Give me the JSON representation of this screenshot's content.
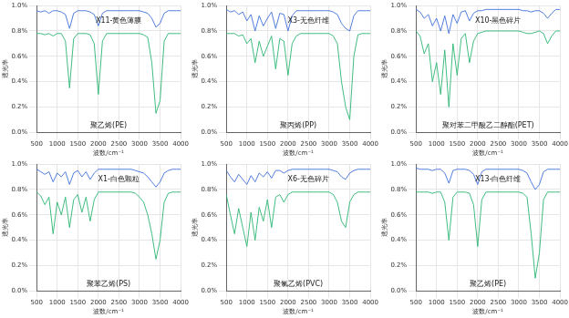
{
  "chart_data": [
    {
      "type": "line",
      "x_label": "波数/cm⁻¹",
      "y_label": "透光率",
      "xlim": [
        500,
        4000
      ],
      "xticks": [
        500,
        1000,
        1500,
        2000,
        2500,
        3000,
        3500,
        4000
      ],
      "ylim": [
        0,
        1.0
      ],
      "yticks": [
        {
          "value": 0,
          "label": "0.0%"
        },
        {
          "value": 0.2,
          "label": "0.2%"
        },
        {
          "value": 0.4,
          "label": "0.4%"
        },
        {
          "value": 0.6,
          "label": "0.6%"
        },
        {
          "value": 0.8,
          "label": "0.8%"
        },
        {
          "value": 1.0,
          "label": "1.0%"
        }
      ],
      "grid": true,
      "x": [
        500,
        600,
        700,
        800,
        900,
        1000,
        1100,
        1200,
        1300,
        1400,
        1500,
        1600,
        1700,
        1800,
        1900,
        2000,
        2100,
        2200,
        2300,
        2400,
        2500,
        2600,
        2700,
        2800,
        2900,
        3000,
        3100,
        3200,
        3300,
        3400,
        3500,
        3600,
        3700,
        3800,
        3900,
        4000
      ],
      "series": [
        {
          "name": "X11-黄色薄膜",
          "color": "#3f6fd9",
          "values": [
            0.96,
            0.95,
            0.96,
            0.94,
            0.96,
            0.96,
            0.95,
            0.93,
            0.82,
            0.94,
            0.96,
            0.96,
            0.96,
            0.95,
            0.93,
            0.84,
            0.94,
            0.96,
            0.96,
            0.96,
            0.96,
            0.96,
            0.96,
            0.96,
            0.96,
            0.96,
            0.95,
            0.94,
            0.9,
            0.83,
            0.86,
            0.94,
            0.96,
            0.96,
            0.96,
            0.96
          ]
        },
        {
          "name": "聚乙烯(PE)",
          "color": "#2bb673",
          "values": [
            0.78,
            0.78,
            0.77,
            0.78,
            0.76,
            0.78,
            0.78,
            0.72,
            0.35,
            0.74,
            0.78,
            0.78,
            0.78,
            0.77,
            0.7,
            0.3,
            0.72,
            0.78,
            0.78,
            0.78,
            0.78,
            0.78,
            0.78,
            0.78,
            0.78,
            0.78,
            0.77,
            0.75,
            0.55,
            0.15,
            0.25,
            0.72,
            0.78,
            0.78,
            0.78,
            0.78
          ]
        }
      ]
    },
    {
      "type": "line",
      "x_label": "波数/cm⁻¹",
      "y_label": "透光率",
      "xlim": [
        500,
        4000
      ],
      "xticks": [
        500,
        1000,
        1500,
        2000,
        2500,
        3000,
        3500,
        4000
      ],
      "ylim": [
        0,
        1.0
      ],
      "yticks": [
        {
          "value": 0,
          "label": "0.0%"
        },
        {
          "value": 0.2,
          "label": "0.2%"
        },
        {
          "value": 0.4,
          "label": "0.4%"
        },
        {
          "value": 0.6,
          "label": "0.6%"
        },
        {
          "value": 0.8,
          "label": "0.8%"
        },
        {
          "value": 1.0,
          "label": "1.0%"
        }
      ],
      "grid": true,
      "x": [
        500,
        600,
        700,
        800,
        900,
        1000,
        1100,
        1200,
        1300,
        1400,
        1500,
        1600,
        1700,
        1800,
        1900,
        2000,
        2100,
        2200,
        2300,
        2400,
        2500,
        2600,
        2700,
        2800,
        2900,
        3000,
        3100,
        3200,
        3300,
        3400,
        3500,
        3600,
        3700,
        3800,
        3900,
        4000
      ],
      "series": [
        {
          "name": "X3-无色纤维",
          "color": "#3f6fd9",
          "values": [
            0.97,
            0.95,
            0.96,
            0.93,
            0.95,
            0.88,
            0.93,
            0.8,
            0.92,
            0.84,
            0.9,
            0.95,
            0.82,
            0.94,
            0.93,
            0.8,
            0.92,
            0.96,
            0.96,
            0.96,
            0.96,
            0.96,
            0.96,
            0.96,
            0.96,
            0.96,
            0.95,
            0.93,
            0.86,
            0.82,
            0.8,
            0.92,
            0.96,
            0.96,
            0.96,
            0.96
          ]
        },
        {
          "name": "聚丙烯(PP)",
          "color": "#2bb673",
          "values": [
            0.78,
            0.78,
            0.78,
            0.76,
            0.77,
            0.7,
            0.74,
            0.55,
            0.72,
            0.6,
            0.68,
            0.76,
            0.5,
            0.74,
            0.72,
            0.45,
            0.7,
            0.76,
            0.78,
            0.78,
            0.78,
            0.78,
            0.78,
            0.78,
            0.78,
            0.78,
            0.76,
            0.7,
            0.4,
            0.2,
            0.1,
            0.6,
            0.77,
            0.78,
            0.78,
            0.78
          ]
        }
      ]
    },
    {
      "type": "line",
      "x_label": "波数/cm⁻¹",
      "y_label": "透光率",
      "xlim": [
        500,
        4000
      ],
      "xticks": [
        500,
        1000,
        1500,
        2000,
        2500,
        3000,
        3500,
        4000
      ],
      "ylim": [
        0,
        1.0
      ],
      "yticks": [
        {
          "value": 0,
          "label": "0.0%"
        },
        {
          "value": 0.2,
          "label": "0.2%"
        },
        {
          "value": 0.4,
          "label": "0.4%"
        },
        {
          "value": 0.6,
          "label": "0.6%"
        },
        {
          "value": 0.8,
          "label": "0.8%"
        },
        {
          "value": 1.0,
          "label": "1.0%"
        }
      ],
      "grid": true,
      "x": [
        500,
        600,
        700,
        800,
        900,
        1000,
        1100,
        1200,
        1300,
        1400,
        1500,
        1600,
        1700,
        1800,
        1900,
        2000,
        2100,
        2200,
        2300,
        2400,
        2500,
        2600,
        2700,
        2800,
        2900,
        3000,
        3100,
        3200,
        3300,
        3400,
        3500,
        3600,
        3700,
        3800,
        3900,
        4000
      ],
      "series": [
        {
          "name": "X10-黑色碎片",
          "color": "#3f6fd9",
          "values": [
            0.97,
            0.95,
            0.9,
            0.93,
            0.84,
            0.9,
            0.8,
            0.92,
            0.78,
            0.93,
            0.86,
            0.95,
            0.96,
            0.88,
            0.94,
            0.96,
            0.96,
            0.97,
            0.97,
            0.97,
            0.97,
            0.97,
            0.97,
            0.97,
            0.97,
            0.97,
            0.96,
            0.96,
            0.95,
            0.96,
            0.96,
            0.94,
            0.9,
            0.94,
            0.97,
            0.97
          ]
        },
        {
          "name": "聚对苯二甲酸乙二醇酯(PET)",
          "color": "#2bb673",
          "values": [
            0.8,
            0.76,
            0.62,
            0.7,
            0.4,
            0.55,
            0.3,
            0.65,
            0.2,
            0.7,
            0.45,
            0.74,
            0.78,
            0.55,
            0.72,
            0.78,
            0.79,
            0.8,
            0.8,
            0.8,
            0.8,
            0.8,
            0.8,
            0.8,
            0.8,
            0.8,
            0.79,
            0.78,
            0.78,
            0.79,
            0.8,
            0.78,
            0.7,
            0.76,
            0.8,
            0.8
          ]
        }
      ]
    },
    {
      "type": "line",
      "x_label": "波数/cm⁻¹",
      "y_label": "透光率",
      "xlim": [
        500,
        4000
      ],
      "xticks": [
        500,
        1000,
        1500,
        2000,
        2500,
        3000,
        3500,
        4000
      ],
      "ylim": [
        0,
        1.0
      ],
      "yticks": [
        {
          "value": 0,
          "label": "0.0%"
        },
        {
          "value": 0.2,
          "label": "0.2%"
        },
        {
          "value": 0.4,
          "label": "0.4%"
        },
        {
          "value": 0.6,
          "label": "0.6%"
        },
        {
          "value": 0.8,
          "label": "0.8%"
        },
        {
          "value": 1.0,
          "label": "1.0%"
        }
      ],
      "grid": true,
      "x": [
        500,
        600,
        700,
        800,
        900,
        1000,
        1100,
        1200,
        1300,
        1400,
        1500,
        1600,
        1700,
        1800,
        1900,
        2000,
        2100,
        2200,
        2300,
        2400,
        2500,
        2600,
        2700,
        2800,
        2900,
        3000,
        3100,
        3200,
        3300,
        3400,
        3500,
        3600,
        3700,
        3800,
        3900,
        4000
      ],
      "series": [
        {
          "name": "X1-白色颗粒",
          "color": "#3f6fd9",
          "values": [
            0.96,
            0.94,
            0.92,
            0.94,
            0.86,
            0.93,
            0.9,
            0.94,
            0.84,
            0.93,
            0.95,
            0.9,
            0.94,
            0.88,
            0.93,
            0.96,
            0.96,
            0.96,
            0.96,
            0.96,
            0.96,
            0.96,
            0.96,
            0.96,
            0.95,
            0.94,
            0.93,
            0.9,
            0.86,
            0.82,
            0.86,
            0.93,
            0.95,
            0.96,
            0.96,
            0.96
          ]
        },
        {
          "name": "聚苯乙烯(PS)",
          "color": "#2bb673",
          "values": [
            0.78,
            0.75,
            0.68,
            0.74,
            0.45,
            0.7,
            0.6,
            0.74,
            0.5,
            0.72,
            0.76,
            0.62,
            0.74,
            0.55,
            0.72,
            0.78,
            0.78,
            0.78,
            0.78,
            0.78,
            0.78,
            0.78,
            0.78,
            0.78,
            0.77,
            0.74,
            0.7,
            0.6,
            0.45,
            0.25,
            0.4,
            0.7,
            0.77,
            0.78,
            0.78,
            0.78
          ]
        }
      ]
    },
    {
      "type": "line",
      "x_label": "波数/cm⁻¹",
      "y_label": "透光率",
      "xlim": [
        500,
        4000
      ],
      "xticks": [
        500,
        1000,
        1500,
        2000,
        2500,
        3000,
        3500,
        4000
      ],
      "ylim": [
        0,
        1.0
      ],
      "yticks": [
        {
          "value": 0,
          "label": "0.0%"
        },
        {
          "value": 0.2,
          "label": "0.2%"
        },
        {
          "value": 0.4,
          "label": "0.4%"
        },
        {
          "value": 0.6,
          "label": "0.6%"
        },
        {
          "value": 0.8,
          "label": "0.8%"
        },
        {
          "value": 1.0,
          "label": "1.0%"
        }
      ],
      "grid": true,
      "x": [
        500,
        600,
        700,
        800,
        900,
        1000,
        1100,
        1200,
        1300,
        1400,
        1500,
        1600,
        1700,
        1800,
        1900,
        2000,
        2100,
        2200,
        2300,
        2400,
        2500,
        2600,
        2700,
        2800,
        2900,
        3000,
        3100,
        3200,
        3300,
        3400,
        3500,
        3600,
        3700,
        3800,
        3900,
        4000
      ],
      "series": [
        {
          "name": "X6-无色碎片",
          "color": "#3f6fd9",
          "values": [
            0.95,
            0.9,
            0.86,
            0.92,
            0.88,
            0.84,
            0.91,
            0.86,
            0.93,
            0.9,
            0.94,
            0.89,
            0.95,
            0.95,
            0.93,
            0.95,
            0.96,
            0.96,
            0.96,
            0.96,
            0.96,
            0.96,
            0.96,
            0.96,
            0.96,
            0.96,
            0.95,
            0.94,
            0.9,
            0.88,
            0.93,
            0.95,
            0.96,
            0.96,
            0.96,
            0.96
          ]
        },
        {
          "name": "聚氯乙烯(PVC)",
          "color": "#2bb673",
          "values": [
            0.76,
            0.6,
            0.45,
            0.65,
            0.5,
            0.35,
            0.62,
            0.4,
            0.66,
            0.55,
            0.72,
            0.5,
            0.74,
            0.76,
            0.7,
            0.76,
            0.78,
            0.78,
            0.78,
            0.78,
            0.78,
            0.78,
            0.78,
            0.78,
            0.78,
            0.78,
            0.76,
            0.7,
            0.55,
            0.5,
            0.7,
            0.76,
            0.78,
            0.78,
            0.78,
            0.78
          ]
        }
      ]
    },
    {
      "type": "line",
      "x_label": "波数/cm⁻¹",
      "y_label": "透光率",
      "xlim": [
        500,
        4000
      ],
      "xticks": [
        500,
        1000,
        1500,
        2000,
        2500,
        3000,
        3500,
        4000
      ],
      "ylim": [
        0,
        1.0
      ],
      "yticks": [
        {
          "value": 0,
          "label": "0.0%"
        },
        {
          "value": 0.2,
          "label": "0.2%"
        },
        {
          "value": 0.4,
          "label": "0.4%"
        },
        {
          "value": 0.6,
          "label": "0.6%"
        },
        {
          "value": 0.8,
          "label": "0.8%"
        },
        {
          "value": 1.0,
          "label": "1.0%"
        }
      ],
      "grid": true,
      "x": [
        500,
        600,
        700,
        800,
        900,
        1000,
        1100,
        1200,
        1300,
        1400,
        1500,
        1600,
        1700,
        1800,
        1900,
        2000,
        2100,
        2200,
        2300,
        2400,
        2500,
        2600,
        2700,
        2800,
        2900,
        3000,
        3100,
        3200,
        3300,
        3400,
        3500,
        3600,
        3700,
        3800,
        3900,
        4000
      ],
      "series": [
        {
          "name": "X13-白色纤维",
          "color": "#3f6fd9",
          "values": [
            0.97,
            0.96,
            0.96,
            0.96,
            0.95,
            0.96,
            0.96,
            0.93,
            0.85,
            0.95,
            0.96,
            0.96,
            0.96,
            0.95,
            0.92,
            0.84,
            0.94,
            0.96,
            0.96,
            0.96,
            0.96,
            0.96,
            0.96,
            0.96,
            0.96,
            0.96,
            0.95,
            0.93,
            0.86,
            0.8,
            0.84,
            0.94,
            0.96,
            0.96,
            0.96,
            0.96
          ]
        },
        {
          "name": "聚乙烯(PE)",
          "color": "#2bb673",
          "values": [
            0.78,
            0.78,
            0.78,
            0.78,
            0.77,
            0.78,
            0.78,
            0.7,
            0.4,
            0.74,
            0.78,
            0.78,
            0.78,
            0.77,
            0.68,
            0.35,
            0.72,
            0.78,
            0.78,
            0.78,
            0.78,
            0.78,
            0.78,
            0.78,
            0.78,
            0.78,
            0.77,
            0.74,
            0.45,
            0.1,
            0.3,
            0.72,
            0.78,
            0.78,
            0.78,
            0.78
          ]
        }
      ]
    }
  ]
}
